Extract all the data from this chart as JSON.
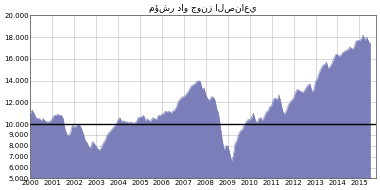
{
  "title": "مؤشر داو جونز الصناعي",
  "xlim": [
    2000,
    2015.75
  ],
  "ylim": [
    5000,
    20000
  ],
  "yticks": [
    5000,
    6000,
    7000,
    8000,
    9000,
    10000,
    12000,
    14000,
    16000,
    18000,
    20000
  ],
  "ytick_labels": [
    "5.000",
    "6.000",
    "7.000",
    "8.000",
    "9.000",
    "10.000",
    "12.000",
    "14.000",
    "16.000",
    "18.000",
    "20.000"
  ],
  "xticks": [
    2000,
    2001,
    2002,
    2003,
    2004,
    2005,
    2006,
    2007,
    2008,
    2009,
    2010,
    2011,
    2012,
    2013,
    2014,
    2015
  ],
  "fill_color": "#7b7eb8",
  "line_color": "#7b7eb8",
  "hline_y": 10000,
  "hline_color": "black",
  "hline_lw": 1.0,
  "background_color": "#ffffff",
  "plot_bg_color": "#ffffff",
  "grid_color": "#bbbbbb",
  "data_x": [
    2000.0,
    2000.083,
    2000.167,
    2000.25,
    2000.333,
    2000.417,
    2000.5,
    2000.583,
    2000.667,
    2000.75,
    2000.833,
    2000.917,
    2001.0,
    2001.083,
    2001.167,
    2001.25,
    2001.333,
    2001.417,
    2001.5,
    2001.583,
    2001.667,
    2001.75,
    2001.833,
    2001.917,
    2002.0,
    2002.083,
    2002.167,
    2002.25,
    2002.333,
    2002.417,
    2002.5,
    2002.583,
    2002.667,
    2002.75,
    2002.833,
    2002.917,
    2003.0,
    2003.083,
    2003.167,
    2003.25,
    2003.333,
    2003.417,
    2003.5,
    2003.583,
    2003.667,
    2003.75,
    2003.833,
    2003.917,
    2004.0,
    2004.083,
    2004.167,
    2004.25,
    2004.333,
    2004.417,
    2004.5,
    2004.583,
    2004.667,
    2004.75,
    2004.833,
    2004.917,
    2005.0,
    2005.083,
    2005.167,
    2005.25,
    2005.333,
    2005.417,
    2005.5,
    2005.583,
    2005.667,
    2005.75,
    2005.833,
    2005.917,
    2006.0,
    2006.083,
    2006.167,
    2006.25,
    2006.333,
    2006.417,
    2006.5,
    2006.583,
    2006.667,
    2006.75,
    2006.833,
    2006.917,
    2007.0,
    2007.083,
    2007.167,
    2007.25,
    2007.333,
    2007.417,
    2007.5,
    2007.583,
    2007.667,
    2007.75,
    2007.833,
    2007.917,
    2008.0,
    2008.083,
    2008.167,
    2008.25,
    2008.333,
    2008.417,
    2008.5,
    2008.583,
    2008.667,
    2008.75,
    2008.833,
    2008.917,
    2009.0,
    2009.083,
    2009.167,
    2009.25,
    2009.333,
    2009.417,
    2009.5,
    2009.583,
    2009.667,
    2009.75,
    2009.833,
    2009.917,
    2010.0,
    2010.083,
    2010.167,
    2010.25,
    2010.333,
    2010.417,
    2010.5,
    2010.583,
    2010.667,
    2010.75,
    2010.833,
    2010.917,
    2011.0,
    2011.083,
    2011.167,
    2011.25,
    2011.333,
    2011.417,
    2011.5,
    2011.583,
    2011.667,
    2011.75,
    2011.833,
    2011.917,
    2012.0,
    2012.083,
    2012.167,
    2012.25,
    2012.333,
    2012.417,
    2012.5,
    2012.583,
    2012.667,
    2012.75,
    2012.833,
    2012.917,
    2013.0,
    2013.083,
    2013.167,
    2013.25,
    2013.333,
    2013.417,
    2013.5,
    2013.583,
    2013.667,
    2013.75,
    2013.833,
    2013.917,
    2014.0,
    2014.083,
    2014.167,
    2014.25,
    2014.333,
    2014.417,
    2014.5,
    2014.583,
    2014.667,
    2014.75,
    2014.833,
    2014.917,
    2015.0,
    2015.083,
    2015.167,
    2015.25,
    2015.333,
    2015.417,
    2015.5
  ],
  "data_y": [
    10940,
    11300,
    11000,
    10600,
    10500,
    10500,
    10300,
    10500,
    10300,
    10200,
    10200,
    10300,
    10500,
    10800,
    10800,
    10900,
    10800,
    10800,
    10500,
    9500,
    9050,
    8900,
    9200,
    9900,
    9700,
    9800,
    10000,
    9900,
    9600,
    9100,
    8500,
    8300,
    7900,
    7800,
    8400,
    8200,
    7950,
    7700,
    7600,
    7900,
    8300,
    8500,
    9000,
    9200,
    9400,
    9600,
    9800,
    10000,
    10400,
    10600,
    10200,
    10300,
    10200,
    10200,
    10100,
    10200,
    10100,
    10100,
    10200,
    10600,
    10600,
    10700,
    10800,
    10300,
    10500,
    10300,
    10300,
    10600,
    10500,
    10400,
    10800,
    10800,
    10900,
    11000,
    11200,
    11100,
    11200,
    11000,
    11200,
    11300,
    11600,
    12100,
    12300,
    12500,
    12500,
    12700,
    12900,
    13200,
    13500,
    13600,
    13700,
    13900,
    14000,
    13900,
    13200,
    13300,
    12700,
    12300,
    12200,
    12500,
    12500,
    12200,
    11400,
    10900,
    9700,
    8500,
    7600,
    8000,
    8000,
    7400,
    6600,
    7050,
    8200,
    8500,
    9100,
    9400,
    9500,
    9900,
    10200,
    10400,
    10400,
    10600,
    11000,
    10400,
    10100,
    10500,
    10600,
    10300,
    10700,
    11100,
    11200,
    11600,
    11700,
    12300,
    12400,
    12200,
    12700,
    12000,
    11200,
    10900,
    11200,
    11700,
    12000,
    12200,
    12400,
    12900,
    13200,
    13100,
    13000,
    12900,
    13100,
    13400,
    13600,
    13700,
    13000,
    13100,
    13900,
    14200,
    14700,
    15100,
    15400,
    15500,
    15700,
    15100,
    15300,
    15600,
    16000,
    16400,
    16400,
    16200,
    16400,
    16600,
    16700,
    16800,
    16900,
    17100,
    16900,
    17000,
    17600,
    17700,
    17700,
    17800,
    18200,
    17700,
    18000,
    17600,
    17400
  ]
}
